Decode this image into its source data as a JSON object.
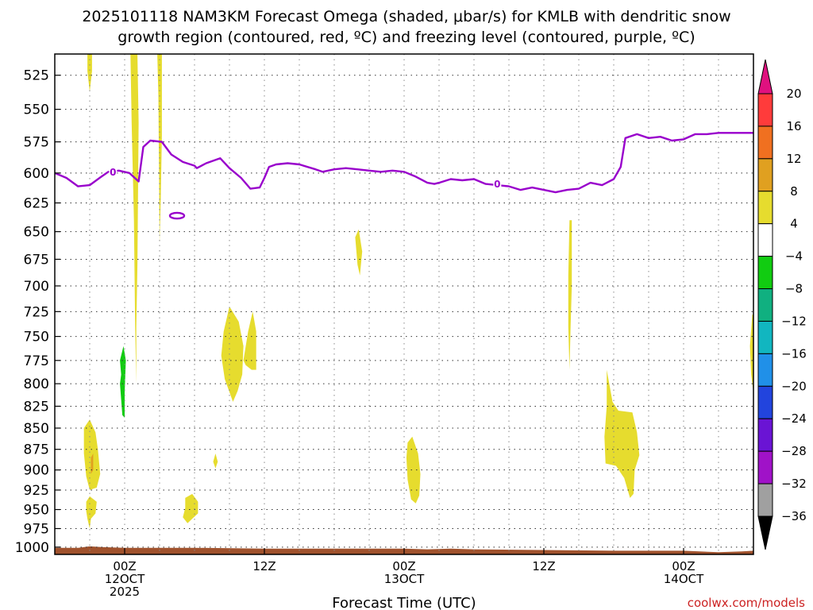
{
  "chart_data": {
    "type": "heatmap",
    "title_line1": "2025101118 NAM3KM Forecast Omega (shaded, μbar/s) for KMLB with dendritic snow",
    "title_line2": "growth region (contoured, red, ºC) and freezing level (contoured, purple, ºC)",
    "xlabel": "Forecast Time (UTC)",
    "ylabel": "",
    "watermark": "coolwx.com/models",
    "x_range_hours_from_run": [
      0,
      60
    ],
    "y_range_hPa": [
      510,
      1010
    ],
    "y_scale": "reversed",
    "grid": "dotted",
    "y_ticks": [
      "525",
      "550",
      "575",
      "600",
      "625",
      "650",
      "675",
      "700",
      "725",
      "750",
      "775",
      "800",
      "825",
      "850",
      "875",
      "900",
      "925",
      "950",
      "975",
      "1000"
    ],
    "x_ticks": [
      {
        "hour": 6,
        "label1": "00Z",
        "label2": "12OCT",
        "label3": "2025"
      },
      {
        "hour": 18,
        "label1": "12Z",
        "label2": "",
        "label3": ""
      },
      {
        "hour": 30,
        "label1": "00Z",
        "label2": "13OCT",
        "label3": ""
      },
      {
        "hour": 42,
        "label1": "12Z",
        "label2": "",
        "label3": ""
      },
      {
        "hour": 54,
        "label1": "00Z",
        "label2": "14OCT",
        "label3": ""
      }
    ],
    "colorbar": {
      "labels": [
        "20",
        "16",
        "12",
        "8",
        "4",
        "−4",
        "−8",
        "−12",
        "−16",
        "−20",
        "−24",
        "−28",
        "−32",
        "−36"
      ],
      "bins": [
        {
          "lo": 16,
          "hi": 20,
          "color": "#ff3b3b"
        },
        {
          "lo": 12,
          "hi": 16,
          "color": "#f07020"
        },
        {
          "lo": 8,
          "hi": 12,
          "color": "#e0a020"
        },
        {
          "lo": 4,
          "hi": 8,
          "color": "#e6dc2e"
        },
        {
          "lo": -4,
          "hi": 4,
          "color": "#ffffff"
        },
        {
          "lo": -8,
          "hi": -4,
          "color": "#11cc11"
        },
        {
          "lo": -12,
          "hi": -8,
          "color": "#10b080"
        },
        {
          "lo": -16,
          "hi": -12,
          "color": "#11b6c0"
        },
        {
          "lo": -20,
          "hi": -16,
          "color": "#2090e8"
        },
        {
          "lo": -24,
          "hi": -20,
          "color": "#2244dd"
        },
        {
          "lo": -28,
          "hi": -24,
          "color": "#6a14d4"
        },
        {
          "lo": -32,
          "hi": -28,
          "color": "#a012c8"
        },
        {
          "lo": -36,
          "hi": -32,
          "color": "#a0a0a0"
        }
      ],
      "top_arrow_color": "#e0117f",
      "bottom_arrow_color": "#000000"
    },
    "freezing_level": {
      "label": "0",
      "color": "#9900cc",
      "points": [
        [
          0,
          600
        ],
        [
          1,
          604
        ],
        [
          2,
          611
        ],
        [
          3,
          610
        ],
        [
          4,
          603
        ],
        [
          4.6,
          599
        ],
        [
          5.5,
          598
        ],
        [
          6.4,
          600
        ],
        [
          7.2,
          607
        ],
        [
          7.6,
          579
        ],
        [
          8.2,
          574
        ],
        [
          9.2,
          575
        ],
        [
          10,
          585
        ],
        [
          11,
          591
        ],
        [
          12,
          594
        ],
        [
          12.2,
          596
        ],
        [
          13,
          592
        ],
        [
          14.2,
          588
        ],
        [
          15,
          596
        ],
        [
          16,
          604
        ],
        [
          16.8,
          613
        ],
        [
          17.6,
          612
        ],
        [
          18,
          604
        ],
        [
          18.4,
          595
        ],
        [
          19,
          593
        ],
        [
          20,
          592
        ],
        [
          21,
          593
        ],
        [
          22.4,
          597
        ],
        [
          23,
          599
        ],
        [
          24,
          597
        ],
        [
          25,
          596
        ],
        [
          26,
          597
        ],
        [
          27,
          598
        ],
        [
          28,
          599
        ],
        [
          29,
          598
        ],
        [
          30,
          599
        ],
        [
          31,
          603
        ],
        [
          32,
          608
        ],
        [
          32.6,
          609
        ],
        [
          33,
          608
        ],
        [
          34,
          605
        ],
        [
          35,
          606
        ],
        [
          36,
          605
        ],
        [
          37,
          609
        ],
        [
          38,
          610
        ],
        [
          39,
          611
        ],
        [
          40,
          614
        ],
        [
          41,
          612
        ],
        [
          42,
          614
        ],
        [
          43,
          616
        ],
        [
          44,
          614
        ],
        [
          45,
          613
        ],
        [
          46,
          608
        ],
        [
          47,
          610
        ],
        [
          48,
          605
        ],
        [
          48.6,
          595
        ],
        [
          49,
          572
        ],
        [
          50,
          569
        ],
        [
          51,
          572
        ],
        [
          52,
          571
        ],
        [
          53,
          574
        ],
        [
          54,
          573
        ],
        [
          55,
          569
        ],
        [
          56,
          569
        ],
        [
          57,
          568
        ],
        [
          58,
          568
        ],
        [
          60,
          568
        ]
      ],
      "ring": {
        "hour": 10.5,
        "hPa": 636
      }
    },
    "shaded_areas": [
      {
        "value": 6,
        "points": [
          [
            2.8,
            510
          ],
          [
            3.2,
            510
          ],
          [
            3.2,
            522
          ],
          [
            3.0,
            537
          ],
          [
            2.8,
            522
          ]
        ]
      },
      {
        "value": 6,
        "points": [
          [
            6.5,
            510
          ],
          [
            7.1,
            510
          ],
          [
            7.2,
            560
          ],
          [
            7.1,
            680
          ],
          [
            7.0,
            740
          ],
          [
            7.0,
            800
          ],
          [
            6.9,
            740
          ],
          [
            6.8,
            640
          ],
          [
            6.6,
            560
          ]
        ]
      },
      {
        "value": 6,
        "points": [
          [
            8.8,
            510
          ],
          [
            9.2,
            510
          ],
          [
            9.2,
            570
          ],
          [
            9.1,
            620
          ],
          [
            9.0,
            660
          ],
          [
            8.95,
            600
          ],
          [
            8.9,
            540
          ]
        ]
      },
      {
        "value": 6,
        "points": [
          [
            2.5,
            850
          ],
          [
            3.0,
            840
          ],
          [
            3.5,
            855
          ],
          [
            3.7,
            875
          ],
          [
            3.9,
            905
          ],
          [
            3.6,
            922
          ],
          [
            3.0,
            925
          ],
          [
            2.7,
            908
          ],
          [
            2.5,
            880
          ]
        ]
      },
      {
        "value": 6,
        "points": [
          [
            2.7,
            940
          ],
          [
            3.0,
            933
          ],
          [
            3.6,
            940
          ],
          [
            3.5,
            955
          ],
          [
            3.1,
            962
          ],
          [
            3.0,
            975
          ],
          [
            2.8,
            962
          ],
          [
            2.7,
            952
          ]
        ]
      },
      {
        "value": 6,
        "points": [
          [
            11.2,
            935
          ],
          [
            11.8,
            930
          ],
          [
            12.3,
            940
          ],
          [
            12.3,
            955
          ],
          [
            11.8,
            962
          ],
          [
            11.4,
            968
          ],
          [
            11.0,
            960
          ],
          [
            11.2,
            948
          ]
        ]
      },
      {
        "value": 6,
        "points": [
          [
            13.6,
            890
          ],
          [
            13.8,
            880
          ],
          [
            14.0,
            890
          ],
          [
            13.8,
            898
          ]
        ]
      },
      {
        "value": 6,
        "points": [
          [
            15.0,
            720
          ],
          [
            15.8,
            735
          ],
          [
            16.2,
            760
          ],
          [
            16.1,
            790
          ],
          [
            15.7,
            808
          ],
          [
            15.3,
            820
          ],
          [
            14.6,
            795
          ],
          [
            14.3,
            770
          ],
          [
            14.5,
            745
          ]
        ]
      },
      {
        "value": 6,
        "points": [
          [
            16.2,
            775
          ],
          [
            16.6,
            745
          ],
          [
            17.0,
            725
          ],
          [
            17.3,
            745
          ],
          [
            17.3,
            785
          ],
          [
            16.9,
            785
          ],
          [
            16.4,
            780
          ]
        ]
      },
      {
        "value": 6,
        "points": [
          [
            25.8,
            655
          ],
          [
            26.1,
            648
          ],
          [
            26.4,
            668
          ],
          [
            26.2,
            690
          ],
          [
            26.0,
            680
          ]
        ]
      },
      {
        "value": 6,
        "points": [
          [
            30.3,
            867
          ],
          [
            30.7,
            860
          ],
          [
            31.2,
            880
          ],
          [
            31.4,
            905
          ],
          [
            31.3,
            932
          ],
          [
            31.0,
            942
          ],
          [
            30.6,
            937
          ],
          [
            30.3,
            912
          ],
          [
            30.2,
            885
          ]
        ]
      },
      {
        "value": 6,
        "points": [
          [
            44.2,
            640
          ],
          [
            44.4,
            640
          ],
          [
            44.4,
            700
          ],
          [
            44.3,
            740
          ],
          [
            44.2,
            785
          ],
          [
            44.1,
            740
          ],
          [
            44.1,
            690
          ]
        ]
      },
      {
        "value": 6,
        "points": [
          [
            47.4,
            785
          ],
          [
            47.9,
            820
          ],
          [
            48.4,
            830
          ],
          [
            49.6,
            832
          ],
          [
            50.0,
            855
          ],
          [
            50.2,
            882
          ],
          [
            49.8,
            900
          ],
          [
            49.7,
            930
          ],
          [
            49.4,
            935
          ],
          [
            48.9,
            910
          ],
          [
            48.2,
            895
          ],
          [
            47.3,
            892
          ],
          [
            47.2,
            860
          ],
          [
            47.4,
            825
          ]
        ]
      },
      {
        "value": 6,
        "points": [
          [
            59.9,
            728
          ],
          [
            60,
            728
          ],
          [
            60,
            810
          ],
          [
            59.8,
            790
          ],
          [
            59.7,
            760
          ]
        ]
      },
      {
        "value": -6,
        "points": [
          [
            5.6,
            775
          ],
          [
            5.9,
            760
          ],
          [
            6.1,
            775
          ],
          [
            6.0,
            810
          ],
          [
            6.0,
            838
          ],
          [
            5.8,
            835
          ],
          [
            5.6,
            800
          ],
          [
            5.7,
            790
          ]
        ]
      },
      {
        "value": 10,
        "points": [
          [
            3.1,
            885
          ],
          [
            3.3,
            880
          ],
          [
            3.3,
            900
          ],
          [
            3.1,
            905
          ]
        ]
      }
    ],
    "surface": {
      "label": "terrain",
      "color": "#a0522d",
      "points": [
        [
          0,
          1001
        ],
        [
          2,
          1001
        ],
        [
          3,
          999
        ],
        [
          4,
          1000
        ],
        [
          6,
          1001
        ],
        [
          12,
          1001
        ],
        [
          18,
          1002
        ],
        [
          24,
          1002
        ],
        [
          30,
          1002
        ],
        [
          32,
          1003
        ],
        [
          34,
          1002
        ],
        [
          36,
          1003
        ],
        [
          42,
          1004
        ],
        [
          48,
          1005
        ],
        [
          54,
          1005
        ],
        [
          57,
          1007
        ],
        [
          59,
          1006
        ],
        [
          60,
          1005
        ]
      ]
    }
  }
}
